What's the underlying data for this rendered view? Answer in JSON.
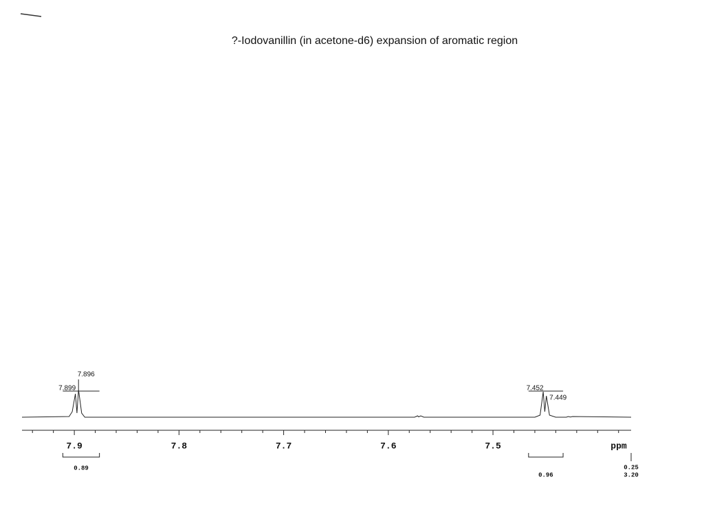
{
  "chart_data": {
    "type": "line",
    "title": "?-Iodovanillin (in acetone-d6) expansion of aromatic region",
    "x_label": "ppm",
    "xlim": [
      7.95,
      7.368
    ],
    "ylim": [
      0,
      50
    ],
    "xticks": [
      7.9,
      7.8,
      7.7,
      7.6,
      7.5
    ],
    "xminorticks": [
      7.94,
      7.92,
      7.88,
      7.86,
      7.84,
      7.82,
      7.78,
      7.76,
      7.74,
      7.72,
      7.68,
      7.66,
      7.64,
      7.62,
      7.58,
      7.56,
      7.54,
      7.52,
      7.48,
      7.46,
      7.44,
      7.42,
      7.4,
      7.38
    ],
    "color": "#222222",
    "x": [
      7.95,
      7.905,
      7.902,
      7.899,
      7.8975,
      7.896,
      7.893,
      7.89,
      7.575,
      7.572,
      7.571,
      7.569,
      7.566,
      7.46,
      7.455,
      7.452,
      7.4505,
      7.449,
      7.446,
      7.44,
      7.43,
      7.428,
      7.426,
      7.424,
      7.368
    ],
    "values": [
      0,
      1,
      8,
      34,
      6,
      40,
      6,
      0,
      0,
      2,
      0.5,
      2,
      0,
      0,
      3,
      37,
      8,
      31,
      3,
      0,
      0,
      1,
      0.3,
      1,
      0
    ],
    "peaks": [
      7.899,
      7.896,
      7.452,
      7.449
    ],
    "integrals": [
      {
        "from": 7.911,
        "to": 7.876,
        "value": 0.89
      },
      {
        "from": 7.466,
        "to": 7.433,
        "value": 0.96
      },
      {
        "from": 7.368,
        "to": 7.368,
        "value": 0.25,
        "total": {
          "value": 3.2,
          "label": "3.20"
        }
      }
    ]
  }
}
